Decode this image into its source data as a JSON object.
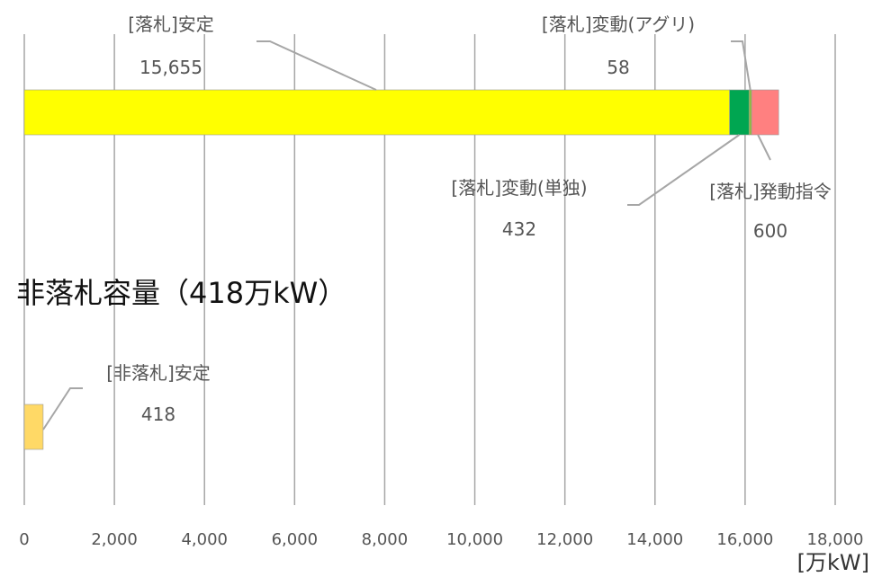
{
  "chart_data": {
    "type": "bar",
    "orientation": "horizontal",
    "stacked": true,
    "xlim": [
      0,
      18000
    ],
    "x_ticks": [
      "0",
      "2,000",
      "4,000",
      "6,000",
      "8,000",
      "10,000",
      "12,000",
      "14,000",
      "16,000",
      "18,000"
    ],
    "unit": "[万kW]",
    "grid": true,
    "series": [
      {
        "name": "[落札]安定",
        "label": "15,655",
        "value": 15655,
        "color": "#ffff00"
      },
      {
        "name": "[落札]変動(単独)",
        "label": "432",
        "value": 432,
        "color": "#00a651"
      },
      {
        "name": "[落札]変動(アグリ)",
        "label": "58",
        "value": 58,
        "color": "#8fbc3f"
      },
      {
        "name": "[落札]発動指令",
        "label": "600",
        "value": 600,
        "color": "#ff8080"
      }
    ],
    "second_group": {
      "subtitle": "非落札容量（418万kW）",
      "series": [
        {
          "name": "[非落札]安定",
          "label": "418",
          "value": 418,
          "color": "#ffd966"
        }
      ]
    }
  }
}
